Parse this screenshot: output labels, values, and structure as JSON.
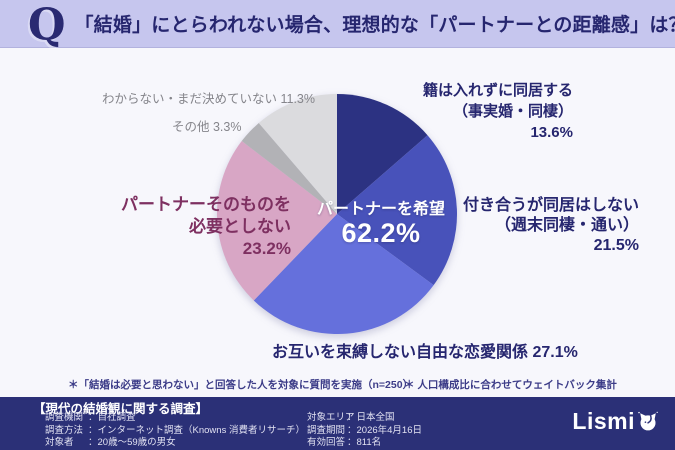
{
  "header": {
    "q_mark": "Q",
    "title": "「結婚」にとらわれない場合、理想的な「パートナーとの距離感」は？"
  },
  "chart_data": {
    "type": "pie",
    "title": "「結婚」にとらわれない場合、理想的な「パートナーとの距離感」は？",
    "unit": "%",
    "start_angle_deg": 0,
    "direction": "clockwise",
    "slices": [
      {
        "label": "籍は入れずに同居する（事実婚・同棲）",
        "value": 13.6,
        "color": "#2c3282",
        "group": "パートナーを希望"
      },
      {
        "label": "付き合うが同居はしない（週末同棲・通い）",
        "value": 21.5,
        "color": "#4852ba",
        "group": "パートナーを希望"
      },
      {
        "label": "お互いを束縛しない自由な恋愛関係",
        "value": 27.1,
        "color": "#6570dc",
        "group": "パートナーを希望"
      },
      {
        "label": "パートナーそのものを必要としない",
        "value": 23.2,
        "color": "#d8a6c5"
      },
      {
        "label": "その他",
        "value": 3.3,
        "color": "#b2b2b6"
      },
      {
        "label": "わからない・まだ決めていない",
        "value": 11.3,
        "color": "#dbdbde"
      }
    ],
    "center_label": {
      "text": "パートナーを希望",
      "value": "62.2%"
    }
  },
  "callouts": {
    "seki": {
      "line1": "籍は入れずに同居する",
      "line2": "（事実婚・同棲）",
      "line3": "13.6%"
    },
    "tsukiau": {
      "line1": "付き合うが同居はしない",
      "line2": "（週末同棲・通い）",
      "line3": "21.5%"
    },
    "sokubaku": {
      "text": "お互いを束縛しない自由な恋愛関係 27.1%"
    },
    "hitsuyou": {
      "line1": "パートナーそのものを",
      "line2": "必要としない",
      "line3": "23.2%"
    },
    "sonota": {
      "text": "その他 3.3%"
    },
    "wakaranai": {
      "text": "わからない・まだ決めていない 11.3%"
    }
  },
  "footnotes": {
    "note1": "＊「結婚は必要と思わない」と回答した人を対象に質問を実施（n=250）",
    "note2": "＊ 人口構成比に合わせてウェイトバック集計"
  },
  "footer": {
    "title": "【現代の結婚観に関する調査】",
    "separator": "：",
    "left_rows": [
      {
        "label": "調査機関",
        "value": "自社調査"
      },
      {
        "label": "調査方法",
        "value": "インターネット調査（Knowns 消費者リサーチ）"
      },
      {
        "label": "対象者",
        "value": "20歳～59歳の男女"
      }
    ],
    "right_rows": [
      {
        "label": "対象エリア",
        "value": "日本全国"
      },
      {
        "label": "調査期間",
        "value": "2026年4月16日"
      },
      {
        "label": "有効回答",
        "value": "811名"
      }
    ],
    "logo_text": "Lismi"
  },
  "colors": {
    "header_bg": "#c6c6ee",
    "page_bg": "#f7f7fc",
    "navy_text": "#26266f",
    "pink_text": "#7e3061",
    "gray_text": "#85858b",
    "footnote_text": "#3c3c88",
    "footer_bg": "#2b3077",
    "footer_text": "#e2e2f2"
  }
}
